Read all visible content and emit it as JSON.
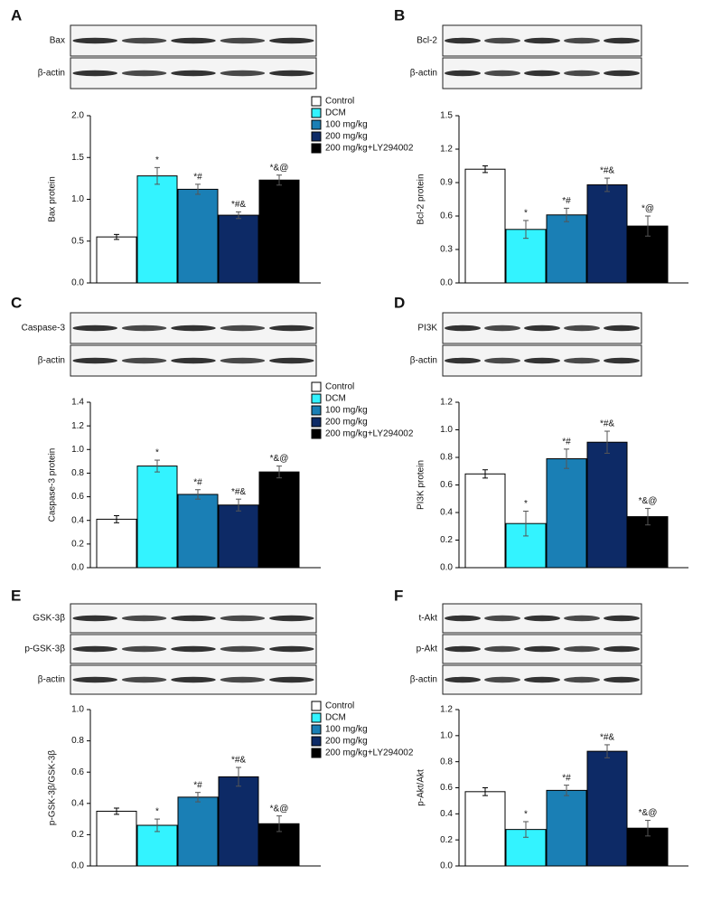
{
  "chart_data": [
    {
      "type": "bar",
      "panel": "A",
      "blots": [
        "Bax",
        "β-actin"
      ],
      "ylabel": "Bax protein",
      "categories": [
        "Control",
        "DCM",
        "100 mg/kg",
        "200 mg/kg",
        "200 mg/kg+LY294002"
      ],
      "colors": [
        "#ffffff",
        "#33f3ff",
        "#1a7fb5",
        "#0d2a66",
        "#000000"
      ],
      "values": [
        0.55,
        1.28,
        1.12,
        0.81,
        1.23
      ],
      "errors": [
        0.03,
        0.1,
        0.06,
        0.04,
        0.06
      ],
      "annotations": [
        null,
        "*",
        "*#",
        "*#&",
        "*&@"
      ],
      "ylim": [
        0,
        2
      ],
      "yticks": [
        {
          "value": 0,
          "label": "0.0"
        },
        0.5,
        {
          "value": 1,
          "label": "1.0"
        },
        1.5,
        {
          "value": 2,
          "label": "2.0"
        }
      ],
      "legend": "top-right"
    },
    {
      "type": "bar",
      "panel": "B",
      "blots": [
        "Bcl-2",
        "β-actin"
      ],
      "ylabel": "Bcl-2 protein",
      "categories": [
        null,
        null,
        null,
        null,
        null
      ],
      "colors": [
        "#ffffff",
        "#33f3ff",
        "#1a7fb5",
        "#0d2a66",
        "#000000"
      ],
      "values": [
        1.02,
        0.48,
        0.61,
        0.88,
        0.51
      ],
      "errors": [
        0.03,
        0.08,
        0.06,
        0.06,
        0.09
      ],
      "annotations": [
        null,
        "*",
        "*#",
        "*#&",
        "*@"
      ],
      "ylim": [
        0,
        1.5
      ],
      "yticks": [
        {
          "value": 0,
          "label": "0.0"
        },
        0.3,
        0.6,
        0.9,
        1.2,
        1.5
      ]
    },
    {
      "type": "bar",
      "panel": "C",
      "blots": [
        "Caspase-3",
        "β-actin"
      ],
      "ylabel": "Caspase-3 protein",
      "categories": [
        "Control",
        "DCM",
        "100 mg/kg",
        "200 mg/kg",
        "200 mg/kg+LY294002"
      ],
      "colors": [
        "#ffffff",
        "#33f3ff",
        "#1a7fb5",
        "#0d2a66",
        "#000000"
      ],
      "values": [
        0.41,
        0.86,
        0.62,
        0.53,
        0.81
      ],
      "errors": [
        0.03,
        0.05,
        0.04,
        0.05,
        0.05
      ],
      "annotations": [
        null,
        "*",
        "*#",
        "*#&",
        "*&@"
      ],
      "ylim": [
        0,
        1.4
      ],
      "yticks": [
        {
          "value": 0,
          "label": "0.0"
        },
        0.2,
        0.4,
        0.6,
        0.8,
        {
          "value": 1,
          "label": "1.0"
        },
        1.2,
        1.4
      ],
      "legend": "top-right"
    },
    {
      "type": "bar",
      "panel": "D",
      "blots": [
        "PI3K",
        "β-actin"
      ],
      "ylabel": "PI3K protein",
      "categories": [
        null,
        null,
        null,
        null,
        null
      ],
      "colors": [
        "#ffffff",
        "#33f3ff",
        "#1a7fb5",
        "#0d2a66",
        "#000000"
      ],
      "values": [
        0.68,
        0.32,
        0.79,
        0.91,
        0.37
      ],
      "errors": [
        0.03,
        0.09,
        0.07,
        0.08,
        0.06
      ],
      "annotations": [
        null,
        "*",
        "*#",
        "*#&",
        "*&@"
      ],
      "ylim": [
        0,
        1.2
      ],
      "yticks": [
        {
          "value": 0,
          "label": "0.0"
        },
        0.2,
        0.4,
        0.6,
        0.8,
        {
          "value": 1,
          "label": "1.0"
        },
        1.2
      ]
    },
    {
      "type": "bar",
      "panel": "E",
      "blots": [
        "GSK-3β",
        "p-GSK-3β",
        "β-actin"
      ],
      "ylabel": "p-GSK-3β/GSK-3β",
      "categories": [
        "Control",
        "DCM",
        "100 mg/kg",
        "200 mg/kg",
        "200 mg/kg+LY294002"
      ],
      "colors": [
        "#ffffff",
        "#33f3ff",
        "#1a7fb5",
        "#0d2a66",
        "#000000"
      ],
      "values": [
        0.35,
        0.26,
        0.44,
        0.57,
        0.27
      ],
      "errors": [
        0.02,
        0.04,
        0.03,
        0.06,
        0.05
      ],
      "annotations": [
        null,
        "*",
        "*#",
        "*#&",
        "*&@"
      ],
      "ylim": [
        0,
        1
      ],
      "yticks": [
        {
          "value": 0,
          "label": "0.0"
        },
        0.2,
        0.4,
        0.6,
        0.8,
        {
          "value": 1,
          "label": "1.0"
        }
      ],
      "legend": "top-right"
    },
    {
      "type": "bar",
      "panel": "F",
      "blots": [
        "t-Akt",
        "p-Akt",
        "β-actin"
      ],
      "ylabel": "p-Akt/Akt",
      "categories": [
        null,
        null,
        null,
        null,
        null
      ],
      "colors": [
        "#ffffff",
        "#33f3ff",
        "#1a7fb5",
        "#0d2a66",
        "#000000"
      ],
      "values": [
        0.57,
        0.28,
        0.58,
        0.88,
        0.29
      ],
      "errors": [
        0.03,
        0.06,
        0.04,
        0.05,
        0.06
      ],
      "annotations": [
        null,
        "*",
        "*#",
        "*#&",
        "*&@"
      ],
      "ylim": [
        0,
        1.2
      ],
      "yticks": [
        {
          "value": 0,
          "label": "0.0"
        },
        0.2,
        0.4,
        0.6,
        0.8,
        {
          "value": 1,
          "label": "1.0"
        },
        1.2
      ]
    }
  ]
}
